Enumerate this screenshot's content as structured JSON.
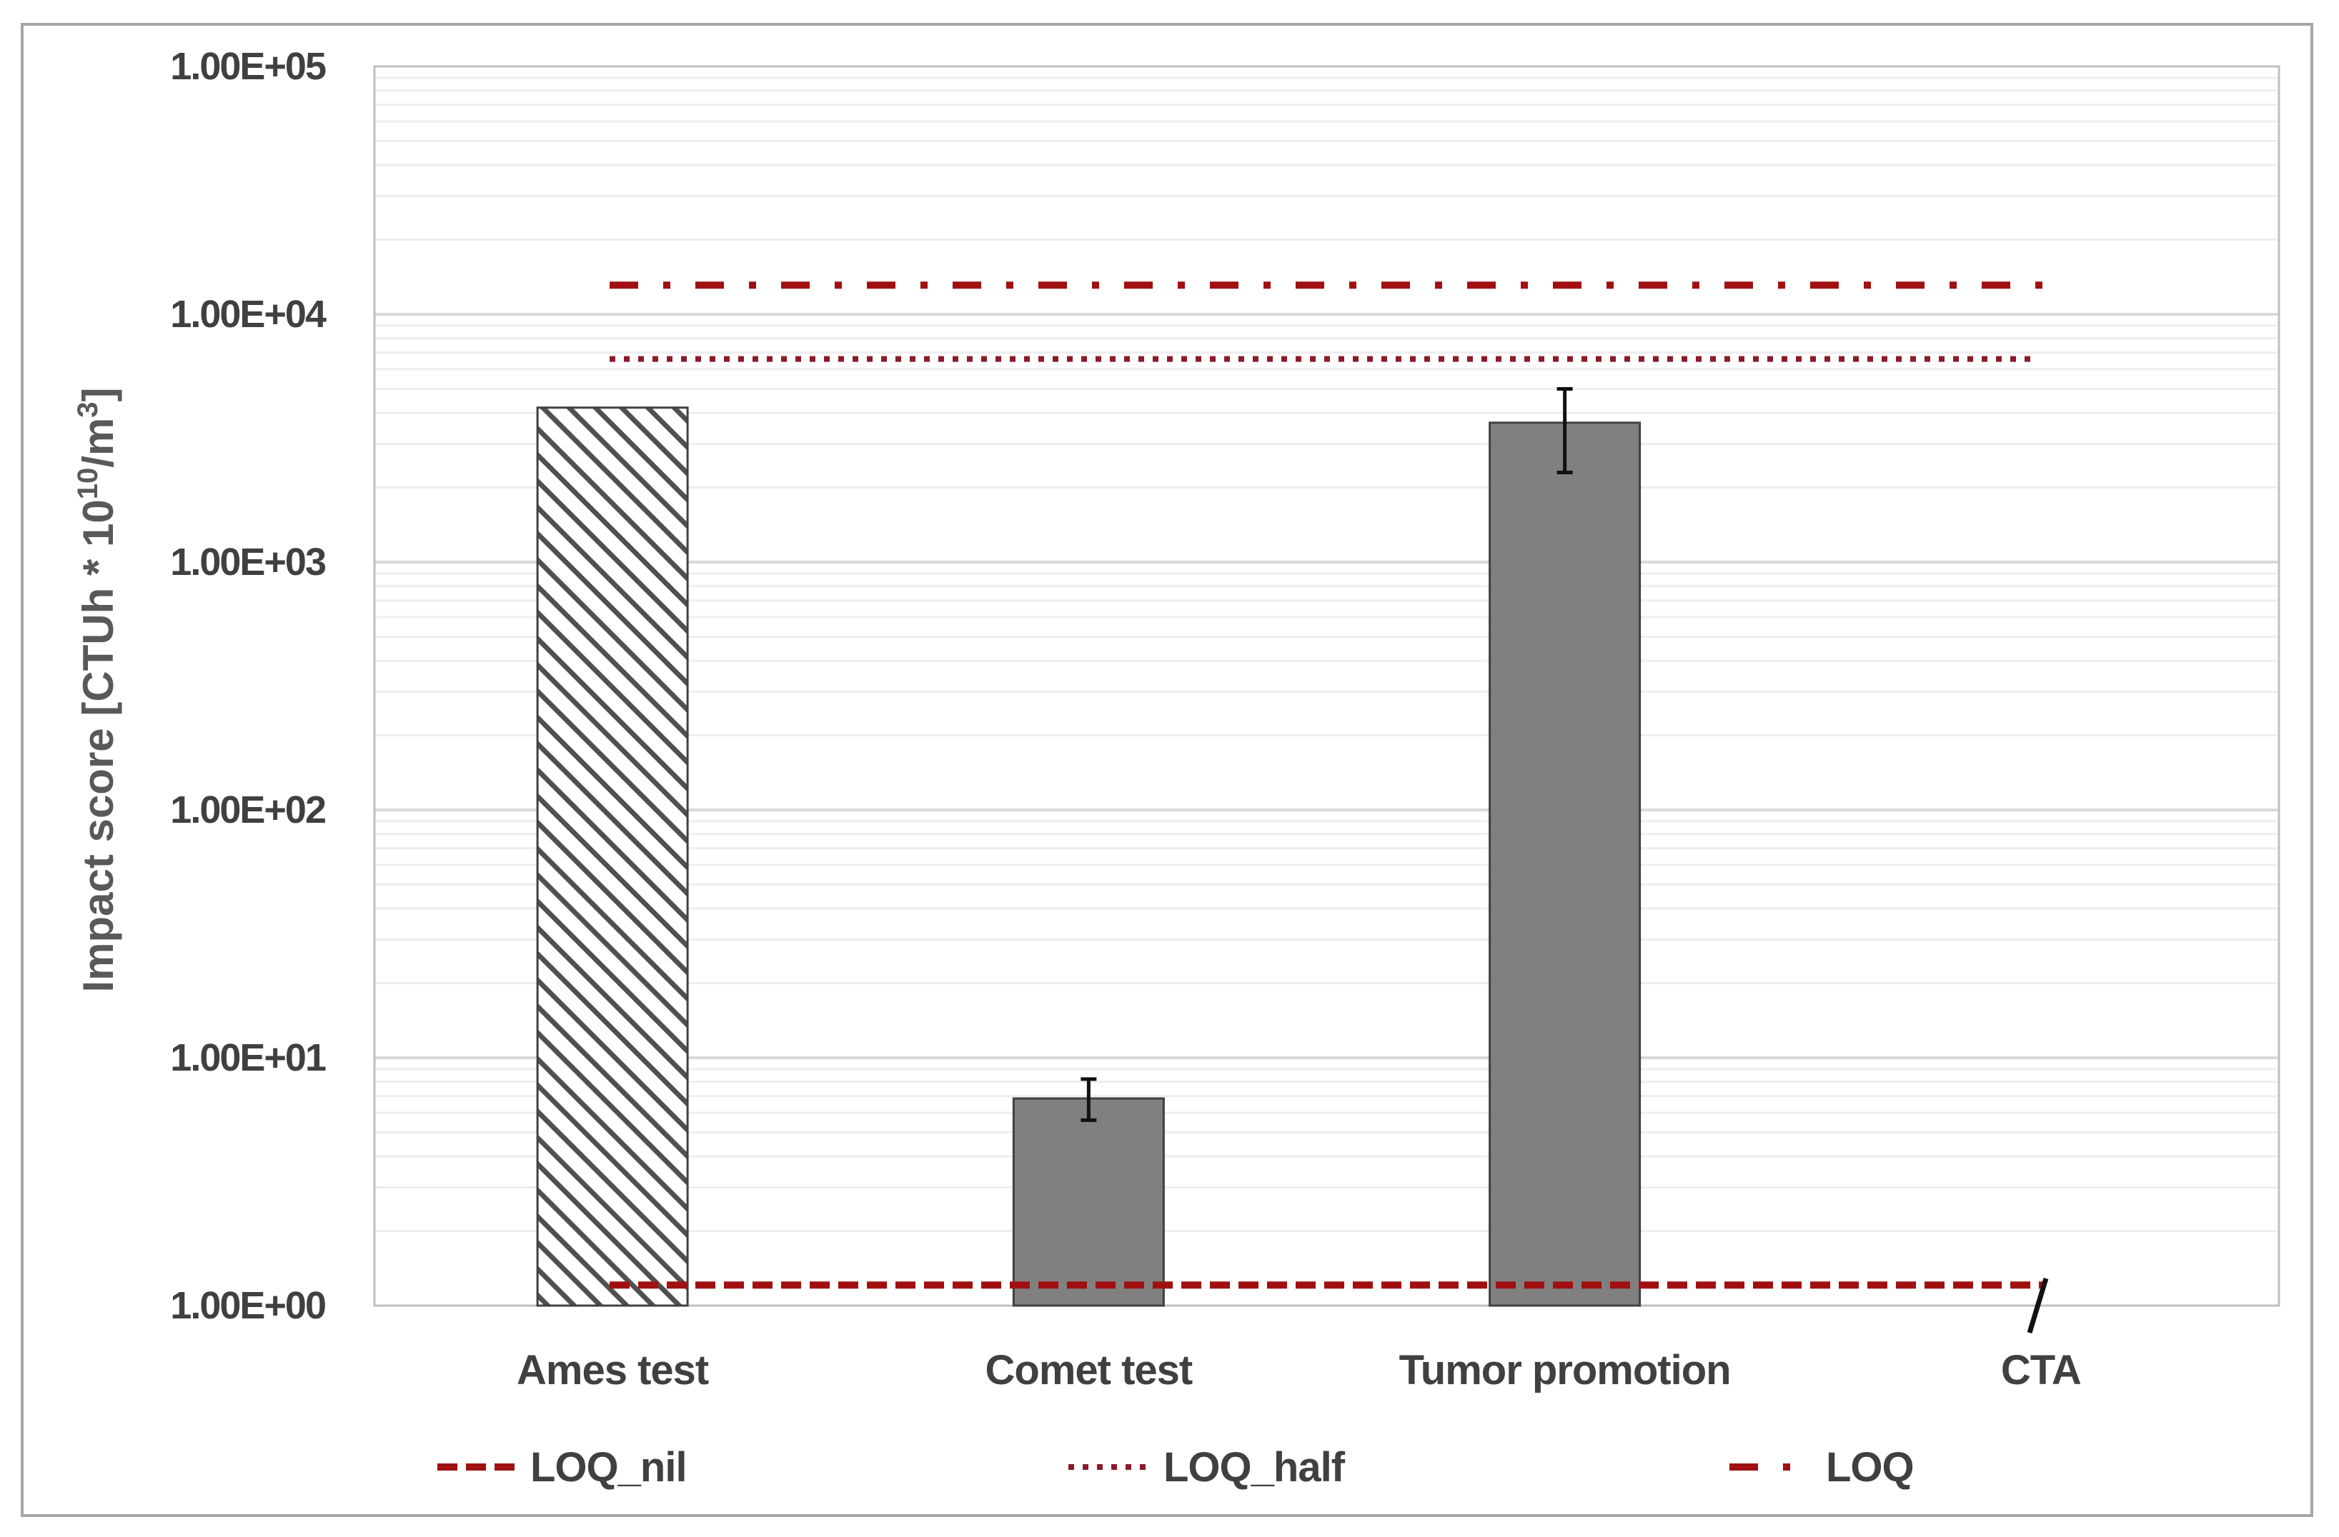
{
  "chart_data": {
    "type": "bar",
    "title": "",
    "xlabel": "",
    "ylabel": "Impact score [CTUh * 10^10/m^3]",
    "ylabel_parts": {
      "main": "Impact score [CTUh * 10",
      "sup1": "10",
      "mid": "/m",
      "sup2": "3",
      "end": "]"
    },
    "yscale": "log",
    "ylim": [
      1,
      100000
    ],
    "yticks": [
      1,
      10,
      100,
      1000,
      10000,
      100000
    ],
    "ytick_labels": [
      "1.00E+00",
      "1.00E+01",
      "1.00E+02",
      "1.00E+03",
      "1.00E+04",
      "1.00E+05"
    ],
    "grid": {
      "major": true,
      "minor": true
    },
    "categories": [
      "Ames test",
      "Comet test",
      "Tumor promotion",
      "CTA"
    ],
    "series": [
      {
        "name": "Impact score",
        "values": [
          4200,
          6.85,
          3650,
          null
        ],
        "error_low": [
          null,
          5.6,
          2300,
          null
        ],
        "error_high": [
          null,
          8.2,
          5000,
          null
        ],
        "styles": [
          "hatched",
          "solid",
          "solid",
          "none"
        ]
      }
    ],
    "reference_lines": [
      {
        "name": "LOQ_nil",
        "value": 1.21,
        "style": "dashed",
        "color": "#a01010"
      },
      {
        "name": "LOQ_half",
        "value": 6600,
        "style": "dotted",
        "color": "#8b1a2a"
      },
      {
        "name": "LOQ",
        "value": 13100,
        "style": "dash-dot",
        "color": "#a01010"
      }
    ],
    "annotations": [
      {
        "type": "axis-break-mark",
        "category": "CTA"
      }
    ],
    "legend": {
      "position": "bottom",
      "entries": [
        "LOQ_nil",
        "LOQ_half",
        "LOQ"
      ]
    },
    "colors": {
      "bar_fill": "#808080",
      "bar_edge": "#404040",
      "hatch": "#505050",
      "loq_red": "#a01010",
      "text": "#404040",
      "grid_major": "#d9d9d9",
      "grid_minor": "#eeeeee",
      "plot_border": "#bfbfbf"
    }
  }
}
